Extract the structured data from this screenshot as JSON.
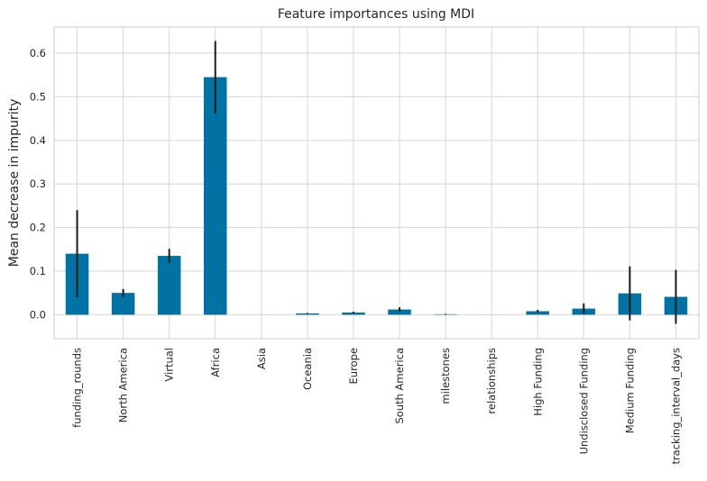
{
  "chart_data": {
    "type": "bar",
    "title": "Feature importances using MDI",
    "xlabel": "",
    "ylabel": "Mean decrease in impurity",
    "ylim": [
      -0.055,
      0.66
    ],
    "yticks": [
      0.0,
      0.1,
      0.2,
      0.3,
      0.4,
      0.5,
      0.6
    ],
    "ytick_labels": [
      "0.0",
      "0.1",
      "0.2",
      "0.3",
      "0.4",
      "0.5",
      "0.6"
    ],
    "grid": true,
    "bar_color": "#0072a3",
    "error_color": "#1a1a1a",
    "categories": [
      "funding_rounds",
      "North America",
      "Virtual",
      "Africa",
      "Asia",
      "Oceania",
      "Europe",
      "South America",
      "milestones",
      "relationships",
      "High Funding",
      "Undisclosed Funding",
      "Medium Funding",
      "tracking_interval_days"
    ],
    "values": [
      0.14,
      0.05,
      0.135,
      0.545,
      0.0,
      0.003,
      0.005,
      0.012,
      0.001,
      0.0,
      0.008,
      0.014,
      0.049,
      0.041
    ],
    "errors": [
      0.1,
      0.009,
      0.016,
      0.083,
      0.0,
      0.001,
      0.002,
      0.005,
      0.001,
      0.0,
      0.003,
      0.012,
      0.062,
      0.062
    ]
  }
}
